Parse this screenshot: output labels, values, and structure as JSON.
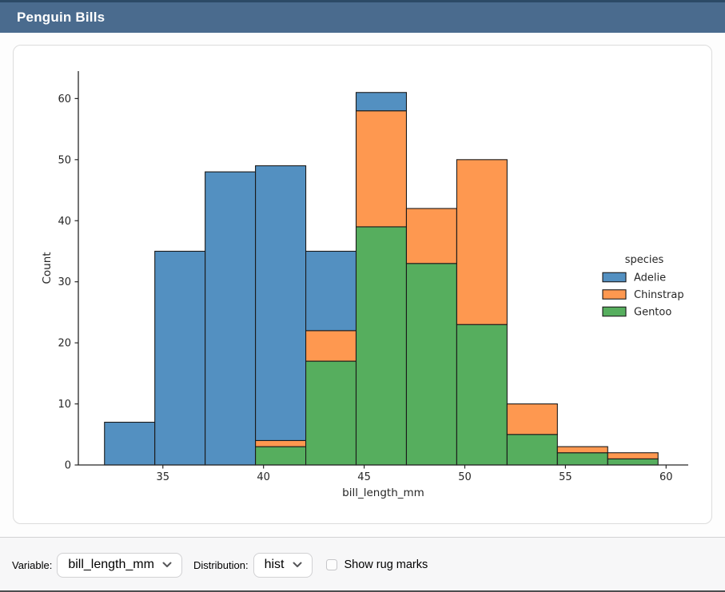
{
  "app": {
    "title": "Penguin Bills"
  },
  "theme": {
    "header_bg": "#4a6b8e",
    "header_top_stripe": "#2c4a66",
    "header_text": "#ffffff",
    "card_border": "#dcdcdc",
    "footer_bg": "#f7f7f8",
    "axis_color": "#262626",
    "bar_edge_color": "#1a1a1a"
  },
  "chart_data": {
    "type": "bar",
    "subtype": "stacked_histogram",
    "xlabel": "bill_length_mm",
    "ylabel": "Count",
    "bin_edges": [
      32.1,
      34.6,
      37.1,
      39.6,
      42.1,
      44.6,
      47.1,
      49.6,
      52.1,
      54.6,
      57.1,
      59.6
    ],
    "series": [
      {
        "name": "Adelie",
        "color": "#5390c1",
        "values": [
          7,
          35,
          48,
          45,
          13,
          3,
          0,
          0,
          0,
          0,
          0
        ]
      },
      {
        "name": "Chinstrap",
        "color": "#fe9850",
        "values": [
          0,
          0,
          0,
          1,
          5,
          19,
          9,
          27,
          5,
          1,
          1
        ]
      },
      {
        "name": "Gentoo",
        "color": "#56ae5e",
        "values": [
          0,
          0,
          0,
          3,
          17,
          39,
          33,
          23,
          5,
          2,
          1
        ]
      }
    ],
    "bin_totals": [
      7,
      35,
      48,
      49,
      35,
      61,
      42,
      50,
      10,
      3,
      2
    ],
    "stack_order_bottom_to_top": [
      "Gentoo",
      "Chinstrap",
      "Adelie"
    ],
    "legend": {
      "title": "species",
      "position": "center-right",
      "frame": false
    },
    "x_ticks": [
      35,
      40,
      45,
      50,
      55,
      60
    ],
    "y_ticks": [
      0,
      10,
      20,
      30,
      40,
      50,
      60
    ],
    "xlim": [
      30.8,
      61.1
    ],
    "ylim": [
      0,
      64.5
    ],
    "grid": false
  },
  "controls": {
    "variable_label": "Variable:",
    "variable_value": "bill_length_mm",
    "distribution_label": "Distribution:",
    "distribution_value": "hist",
    "rug_label": "Show rug marks",
    "rug_checked": false
  }
}
